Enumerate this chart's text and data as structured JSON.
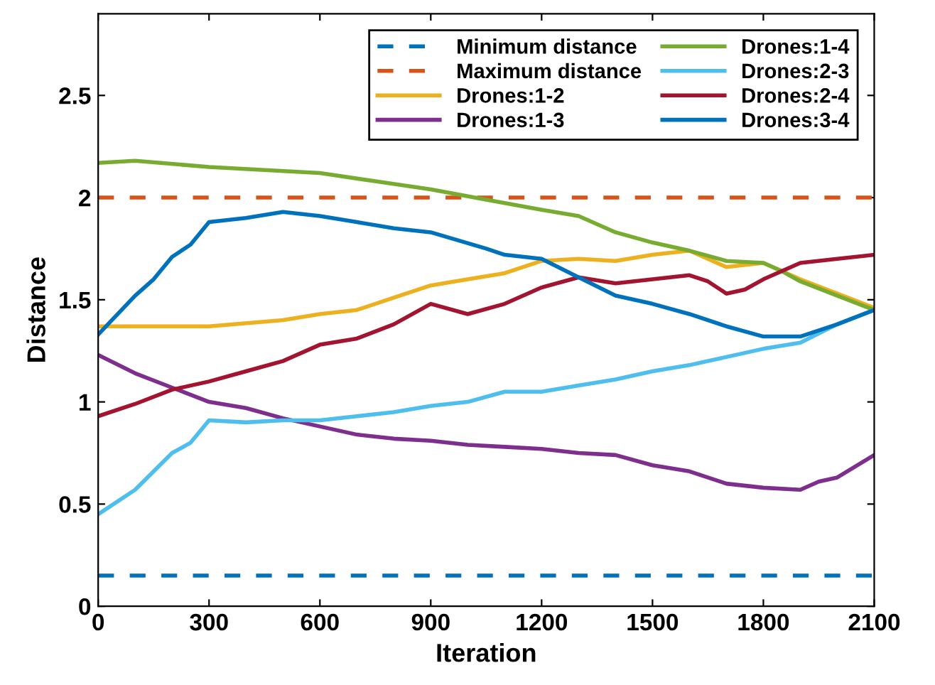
{
  "chart_data": {
    "type": "line",
    "xlabel": "Iteration",
    "ylabel": "Distance",
    "xlim": [
      0,
      2100
    ],
    "xticks": [
      0,
      300,
      600,
      900,
      1200,
      1500,
      1800,
      2100
    ],
    "ylim": [
      0,
      2.9
    ],
    "yticks": [
      0,
      0.5,
      1,
      1.5,
      2,
      2.5
    ],
    "grid": false,
    "legend": "top right",
    "line_style": "solid",
    "marker": "none",
    "ref_lines": [
      {
        "axis": "y",
        "value": 0.15,
        "label": "Minimum distance",
        "color": "#0072bd",
        "line_style": "dashed"
      },
      {
        "axis": "y",
        "value": 2,
        "label": "Maximum distance",
        "color": "#d95319",
        "line_style": "dashed"
      }
    ],
    "series": [
      {
        "name": "Drones:1-2",
        "color": "#edb120",
        "x": [
          0,
          300,
          500,
          600,
          700,
          800,
          900,
          1000,
          1100,
          1200,
          1300,
          1400,
          1500,
          1600,
          1700,
          1800,
          1850,
          1900,
          2000,
          2100
        ],
        "values": [
          1.37,
          1.37,
          1.4,
          1.43,
          1.45,
          1.51,
          1.57,
          1.6,
          1.63,
          1.69,
          1.7,
          1.69,
          1.72,
          1.74,
          1.66,
          1.68,
          1.64,
          1.6,
          1.53,
          1.46
        ]
      },
      {
        "name": "Drones:1-3",
        "color": "#7e2f8e",
        "x": [
          0,
          100,
          200,
          300,
          400,
          500,
          600,
          700,
          800,
          900,
          1000,
          1100,
          1200,
          1300,
          1400,
          1500,
          1600,
          1700,
          1800,
          1900,
          1950,
          2000,
          2100
        ],
        "values": [
          1.23,
          1.14,
          1.07,
          1.0,
          0.97,
          0.92,
          0.88,
          0.84,
          0.82,
          0.81,
          0.79,
          0.78,
          0.77,
          0.75,
          0.74,
          0.69,
          0.66,
          0.6,
          0.58,
          0.57,
          0.61,
          0.63,
          0.74
        ]
      },
      {
        "name": "Drones:1-4",
        "color": "#77ac30",
        "x": [
          0,
          100,
          300,
          600,
          750,
          900,
          1050,
          1200,
          1300,
          1400,
          1500,
          1600,
          1700,
          1800,
          1850,
          1900,
          2000,
          2100
        ],
        "values": [
          2.17,
          2.18,
          2.15,
          2.12,
          2.08,
          2.04,
          1.99,
          1.94,
          1.91,
          1.83,
          1.78,
          1.74,
          1.69,
          1.68,
          1.64,
          1.59,
          1.52,
          1.45
        ]
      },
      {
        "name": "Drones:2-3",
        "color": "#4dbeee",
        "x": [
          0,
          100,
          200,
          250,
          300,
          400,
          500,
          600,
          700,
          800,
          900,
          1000,
          1100,
          1200,
          1300,
          1400,
          1500,
          1600,
          1700,
          1800,
          1900,
          2000,
          2100
        ],
        "values": [
          0.45,
          0.57,
          0.75,
          0.8,
          0.91,
          0.9,
          0.91,
          0.91,
          0.93,
          0.95,
          0.98,
          1.0,
          1.05,
          1.05,
          1.08,
          1.11,
          1.15,
          1.18,
          1.22,
          1.26,
          1.29,
          1.38,
          1.45
        ]
      },
      {
        "name": "Drones:2-4",
        "color": "#a2142f",
        "x": [
          0,
          100,
          200,
          300,
          400,
          500,
          600,
          700,
          800,
          900,
          1000,
          1100,
          1200,
          1300,
          1400,
          1500,
          1600,
          1650,
          1700,
          1750,
          1800,
          1850,
          1900,
          2000,
          2100
        ],
        "values": [
          0.93,
          0.99,
          1.06,
          1.1,
          1.15,
          1.2,
          1.28,
          1.31,
          1.38,
          1.48,
          1.43,
          1.48,
          1.56,
          1.61,
          1.58,
          1.6,
          1.62,
          1.59,
          1.53,
          1.55,
          1.6,
          1.64,
          1.68,
          1.7,
          1.72
        ]
      },
      {
        "name": "Drones:3-4",
        "color": "#0072bd",
        "x": [
          0,
          100,
          150,
          200,
          250,
          300,
          400,
          500,
          600,
          700,
          800,
          900,
          1050,
          1100,
          1200,
          1300,
          1400,
          1500,
          1600,
          1700,
          1800,
          1900,
          2000,
          2100
        ],
        "values": [
          1.33,
          1.52,
          1.6,
          1.71,
          1.77,
          1.88,
          1.9,
          1.93,
          1.91,
          1.88,
          1.85,
          1.83,
          1.75,
          1.72,
          1.7,
          1.61,
          1.52,
          1.48,
          1.43,
          1.37,
          1.32,
          1.32,
          1.38,
          1.45
        ]
      }
    ]
  }
}
